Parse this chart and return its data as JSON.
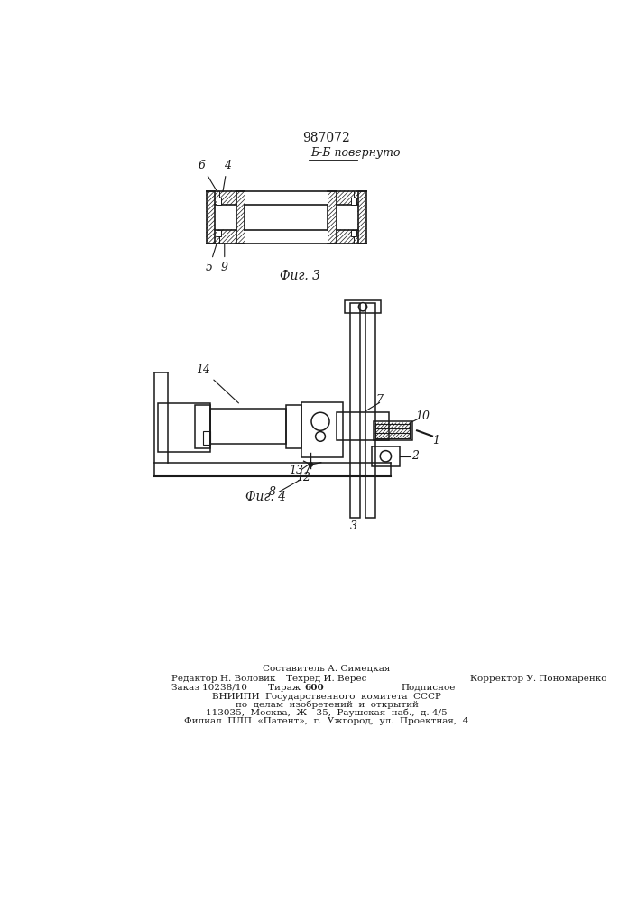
{
  "patent_number": "987072",
  "fig3_label": "Фиг. 3",
  "fig4_label": "Фиг. 4",
  "section_label": "Б-Б повернуто",
  "background_color": "#ffffff",
  "line_color": "#1a1a1a"
}
